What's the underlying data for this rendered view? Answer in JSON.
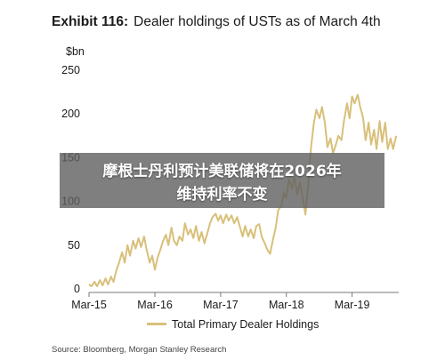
{
  "header": {
    "exhibit": "Exhibit 116:",
    "title": "Dealer holdings of USTs as of March 4th"
  },
  "overlay": {
    "line1": "摩根士丹利预计美联储将在2026年",
    "line2": "维持利率不变"
  },
  "source": "Source: Bloomberg, Morgan Stanley Research",
  "colors": {
    "series": "#d8c07a",
    "axis": "#777777",
    "text": "#1b1b1b",
    "overlay": "#5f5f5f"
  },
  "chart_data": {
    "type": "line",
    "title": "Dealer holdings of USTs as of March 4th",
    "ylabel": "$bn",
    "xlabel": "",
    "ylim": [
      0,
      250
    ],
    "yticks": [
      0,
      50,
      100,
      150,
      200,
      250
    ],
    "xlim": [
      "2015-03-01",
      "2019-11-15"
    ],
    "xticks": [
      {
        "date": "2015-03-01",
        "label": "Mar-15"
      },
      {
        "date": "2016-03-01",
        "label": "Mar-16"
      },
      {
        "date": "2017-03-01",
        "label": "Mar-17"
      },
      {
        "date": "2018-03-01",
        "label": "Mar-18"
      },
      {
        "date": "2019-03-01",
        "label": "Mar-19"
      }
    ],
    "grid": false,
    "legend": "bottom",
    "series": [
      {
        "name": "Total Primary Dealer Holdings",
        "points": [
          [
            "2015-03-01",
            5
          ],
          [
            "2015-03-15",
            3
          ],
          [
            "2015-04-01",
            8
          ],
          [
            "2015-04-15",
            3
          ],
          [
            "2015-05-01",
            10
          ],
          [
            "2015-05-15",
            4
          ],
          [
            "2015-06-01",
            12
          ],
          [
            "2015-06-15",
            5
          ],
          [
            "2015-07-01",
            14
          ],
          [
            "2015-07-15",
            8
          ],
          [
            "2015-08-01",
            22
          ],
          [
            "2015-08-15",
            30
          ],
          [
            "2015-09-01",
            42
          ],
          [
            "2015-09-15",
            30
          ],
          [
            "2015-10-01",
            50
          ],
          [
            "2015-10-15",
            38
          ],
          [
            "2015-11-01",
            55
          ],
          [
            "2015-11-15",
            46
          ],
          [
            "2015-12-01",
            58
          ],
          [
            "2015-12-15",
            48
          ],
          [
            "2016-01-01",
            60
          ],
          [
            "2016-01-15",
            45
          ],
          [
            "2016-02-01",
            30
          ],
          [
            "2016-02-15",
            38
          ],
          [
            "2016-03-01",
            22
          ],
          [
            "2016-03-15",
            35
          ],
          [
            "2016-04-01",
            45
          ],
          [
            "2016-04-15",
            55
          ],
          [
            "2016-05-01",
            62
          ],
          [
            "2016-05-15",
            50
          ],
          [
            "2016-06-01",
            70
          ],
          [
            "2016-06-15",
            55
          ],
          [
            "2016-07-01",
            50
          ],
          [
            "2016-07-15",
            60
          ],
          [
            "2016-08-01",
            55
          ],
          [
            "2016-08-15",
            75
          ],
          [
            "2016-09-01",
            62
          ],
          [
            "2016-09-15",
            68
          ],
          [
            "2016-10-01",
            58
          ],
          [
            "2016-10-15",
            72
          ],
          [
            "2016-11-01",
            55
          ],
          [
            "2016-11-15",
            65
          ],
          [
            "2016-12-01",
            52
          ],
          [
            "2016-12-15",
            62
          ],
          [
            "2017-01-01",
            75
          ],
          [
            "2017-01-15",
            82
          ],
          [
            "2017-02-01",
            86
          ],
          [
            "2017-02-15",
            78
          ],
          [
            "2017-03-01",
            84
          ],
          [
            "2017-03-15",
            75
          ],
          [
            "2017-04-01",
            85
          ],
          [
            "2017-04-15",
            78
          ],
          [
            "2017-05-01",
            84
          ],
          [
            "2017-05-15",
            75
          ],
          [
            "2017-06-01",
            82
          ],
          [
            "2017-06-15",
            72
          ],
          [
            "2017-07-01",
            60
          ],
          [
            "2017-07-15",
            72
          ],
          [
            "2017-08-01",
            60
          ],
          [
            "2017-08-15",
            68
          ],
          [
            "2017-09-01",
            58
          ],
          [
            "2017-09-15",
            72
          ],
          [
            "2017-10-01",
            74
          ],
          [
            "2017-10-15",
            60
          ],
          [
            "2017-11-01",
            52
          ],
          [
            "2017-11-15",
            45
          ],
          [
            "2017-12-01",
            40
          ],
          [
            "2017-12-15",
            55
          ],
          [
            "2018-01-01",
            70
          ],
          [
            "2018-01-15",
            90
          ],
          [
            "2018-02-01",
            95
          ],
          [
            "2018-02-15",
            110
          ],
          [
            "2018-03-01",
            104
          ],
          [
            "2018-03-15",
            125
          ],
          [
            "2018-04-01",
            115
          ],
          [
            "2018-04-15",
            128
          ],
          [
            "2018-05-01",
            108
          ],
          [
            "2018-05-15",
            122
          ],
          [
            "2018-06-01",
            102
          ],
          [
            "2018-06-15",
            85
          ],
          [
            "2018-07-01",
            120
          ],
          [
            "2018-07-15",
            160
          ],
          [
            "2018-08-01",
            190
          ],
          [
            "2018-08-15",
            205
          ],
          [
            "2018-09-01",
            195
          ],
          [
            "2018-09-15",
            208
          ],
          [
            "2018-10-01",
            190
          ],
          [
            "2018-10-15",
            162
          ],
          [
            "2018-11-01",
            172
          ],
          [
            "2018-11-15",
            155
          ],
          [
            "2018-12-01",
            165
          ],
          [
            "2018-12-15",
            175
          ],
          [
            "2019-01-01",
            170
          ],
          [
            "2019-01-15",
            192
          ],
          [
            "2019-02-01",
            212
          ],
          [
            "2019-02-15",
            195
          ],
          [
            "2019-03-01",
            220
          ],
          [
            "2019-03-15",
            212
          ],
          [
            "2019-04-01",
            222
          ],
          [
            "2019-04-15",
            208
          ],
          [
            "2019-05-01",
            196
          ],
          [
            "2019-05-15",
            170
          ],
          [
            "2019-06-01",
            190
          ],
          [
            "2019-06-15",
            165
          ],
          [
            "2019-07-01",
            182
          ],
          [
            "2019-07-15",
            160
          ],
          [
            "2019-08-01",
            192
          ],
          [
            "2019-08-15",
            168
          ],
          [
            "2019-09-01",
            190
          ],
          [
            "2019-09-15",
            160
          ],
          [
            "2019-10-01",
            172
          ],
          [
            "2019-10-15",
            160
          ],
          [
            "2019-11-01",
            175
          ]
        ]
      }
    ]
  }
}
